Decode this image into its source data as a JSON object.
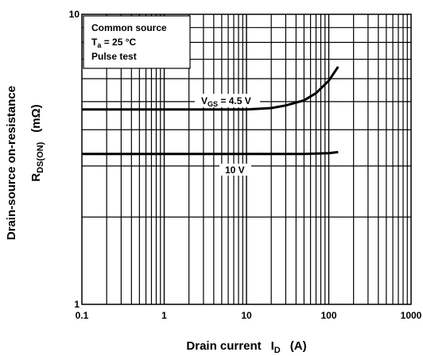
{
  "chart_data": {
    "type": "line",
    "x_scale": "log",
    "y_scale": "log",
    "xlim": [
      0.1,
      1000
    ],
    "ylim": [
      1,
      10
    ],
    "grid": true,
    "x_ticks": [
      "0.1",
      "1",
      "10",
      "100",
      "1000"
    ],
    "y_ticks": [
      "10",
      "1"
    ],
    "xlabel": {
      "main": "Drain current",
      "symbol": "I",
      "sub": "D",
      "unit": "(A)"
    },
    "ylabel": {
      "main": "Drain-source on-resistance",
      "symbol": "R",
      "sub": "DS(ON)",
      "unit": "(mΩ)"
    },
    "conditions": [
      {
        "main": "Common source"
      },
      {
        "main": "T",
        "sub": "a",
        "rest": " = 25 °C"
      },
      {
        "main": "Pulse test"
      }
    ],
    "series": [
      {
        "label": {
          "main": "V",
          "sub": "GS",
          "rest": " = 4.5 V"
        },
        "x": [
          0.1,
          1,
          5,
          10,
          20,
          30,
          50,
          70,
          100,
          130
        ],
        "y": [
          4.7,
          4.7,
          4.7,
          4.7,
          4.75,
          4.85,
          5.05,
          5.35,
          5.9,
          6.6
        ]
      },
      {
        "label": {
          "main": "10 V"
        },
        "x": [
          0.1,
          1,
          10,
          50,
          100,
          130
        ],
        "y": [
          3.3,
          3.3,
          3.3,
          3.3,
          3.32,
          3.35
        ]
      }
    ],
    "colors": {
      "line": "#000000",
      "grid": "#000000",
      "background": "#ffffff"
    }
  }
}
